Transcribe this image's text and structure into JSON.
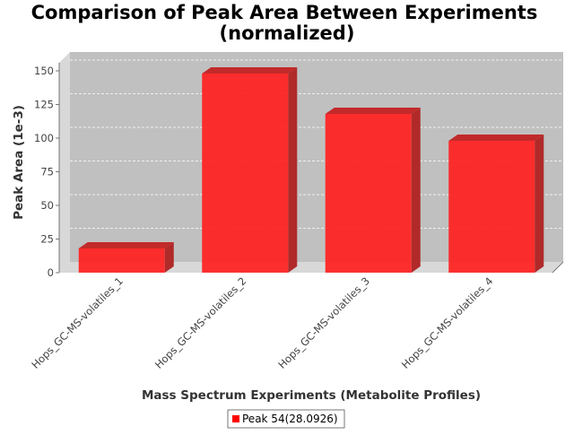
{
  "chart_data": {
    "type": "bar",
    "title": "Comparison of Peak Area Between Experiments",
    "subtitle": "(normalized)",
    "xlabel": "Mass Spectrum Experiments (Metabolite Profiles)",
    "ylabel": "Peak Area (1e-3)",
    "categories": [
      "Hops_GC-MS-volatiles_1",
      "Hops_GC-MS-volatiles_2",
      "Hops_GC-MS-volatiles_3",
      "Hops_GC-MS-volatiles_4"
    ],
    "series": [
      {
        "name": "Peak 54(28.0926)",
        "values": [
          18,
          148,
          118,
          98
        ],
        "color": "#ff2020"
      }
    ],
    "ylim": [
      0,
      155
    ],
    "yticks": [
      0,
      25,
      50,
      75,
      100,
      125,
      150
    ],
    "grid": true,
    "legend_position": "bottom",
    "plot_background": "#c0c0c0"
  }
}
